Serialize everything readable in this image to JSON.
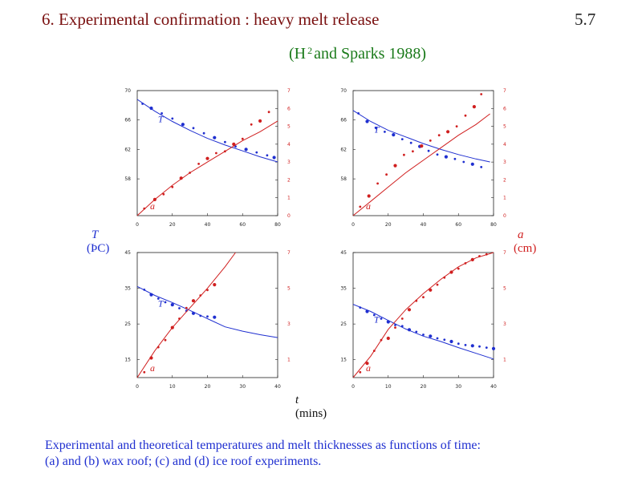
{
  "slide": {
    "title": "6. Experimental confirmation : heavy melt release",
    "number": "5.7",
    "citation_pre": "(H",
    "citation_sup": "2",
    "citation_post": "and Sparks  1988)",
    "left_axis_title": "T",
    "left_axis_unit": "(ÞC)",
    "right_axis_title": "a",
    "right_axis_unit": "(cm)",
    "x_axis_title": "t",
    "x_axis_unit": "(mins)",
    "caption_line1": "Experimental and theoretical temperatures and melt thicknesses as functions of time:",
    "caption_line2": "(a) and (b) wax roof; (c) and (d) ice roof experiments."
  },
  "colors": {
    "temperature": "#1f2fd0",
    "thickness": "#d01f1f",
    "title": "#7a1010",
    "citation": "#1a7a1a"
  },
  "chart_data": [
    {
      "type": "scatter",
      "panel": "a",
      "xlim": [
        0,
        80
      ],
      "xticks": [
        "0",
        "20",
        "40",
        "60",
        "80"
      ],
      "ylim_left": [
        53,
        70
      ],
      "yticks_left": [
        "58",
        "62",
        "66",
        "70"
      ],
      "ylim_right": [
        0,
        7
      ],
      "yticks_right": [
        "0",
        "1",
        "2",
        "3",
        "4",
        "5",
        "6",
        "7"
      ],
      "series": [
        {
          "name": "T",
          "axis": "left",
          "role": "theory",
          "x": [
            0,
            10,
            20,
            30,
            40,
            50,
            60,
            70,
            80
          ],
          "y": [
            68.8,
            67.2,
            65.8,
            64.6,
            63.5,
            62.6,
            61.8,
            61.0,
            60.3
          ]
        },
        {
          "name": "T",
          "axis": "left",
          "role": "data",
          "x": [
            3,
            8,
            14,
            20,
            26,
            32,
            38,
            44,
            50,
            56,
            62,
            68,
            74,
            78
          ],
          "y": [
            68.2,
            67.6,
            66.9,
            66.2,
            65.4,
            64.9,
            64.2,
            63.6,
            63.0,
            62.4,
            62.0,
            61.6,
            61.2,
            60.9
          ]
        },
        {
          "name": "a",
          "axis": "right",
          "role": "theory",
          "x": [
            0,
            10,
            20,
            30,
            40,
            50,
            60,
            70,
            80
          ],
          "y": [
            0,
            0.9,
            1.7,
            2.4,
            3.0,
            3.6,
            4.2,
            4.7,
            5.3
          ]
        },
        {
          "name": "a",
          "axis": "right",
          "role": "data",
          "x": [
            4,
            10,
            15,
            20,
            25,
            30,
            35,
            40,
            45,
            50,
            55,
            60,
            65,
            70,
            75
          ],
          "y": [
            0.4,
            0.9,
            1.2,
            1.6,
            2.1,
            2.4,
            2.9,
            3.2,
            3.5,
            3.6,
            4.0,
            4.3,
            5.1,
            5.3,
            5.8
          ]
        }
      ]
    },
    {
      "type": "scatter",
      "panel": "b",
      "xlim": [
        0,
        80
      ],
      "xticks": [
        "0",
        "20",
        "40",
        "60",
        "80"
      ],
      "ylim_left": [
        53,
        70
      ],
      "yticks_left": [
        "58",
        "62",
        "66",
        "70"
      ],
      "ylim_right": [
        0,
        7
      ],
      "yticks_right": [
        "0",
        "1",
        "2",
        "3",
        "4",
        "5",
        "6",
        "7"
      ],
      "series": [
        {
          "name": "T",
          "axis": "left",
          "role": "theory",
          "x": [
            0,
            10,
            20,
            30,
            40,
            50,
            60,
            70,
            78
          ],
          "y": [
            67.3,
            65.8,
            64.6,
            63.7,
            62.8,
            62.0,
            61.3,
            60.7,
            60.3
          ]
        },
        {
          "name": "T",
          "axis": "left",
          "role": "data",
          "x": [
            3,
            8,
            13,
            18,
            23,
            28,
            33,
            38,
            43,
            48,
            53,
            58,
            63,
            68,
            73
          ],
          "y": [
            66.9,
            65.8,
            64.9,
            64.4,
            64.0,
            63.4,
            62.9,
            62.4,
            61.8,
            61.3,
            61.0,
            60.7,
            60.3,
            60.0,
            59.6
          ]
        },
        {
          "name": "a",
          "axis": "right",
          "role": "theory",
          "x": [
            0,
            10,
            20,
            30,
            40,
            50,
            60,
            70,
            78
          ],
          "y": [
            0,
            0.8,
            1.6,
            2.4,
            3.1,
            3.8,
            4.5,
            5.1,
            5.7
          ]
        },
        {
          "name": "a",
          "axis": "right",
          "role": "data",
          "x": [
            4,
            9,
            14,
            19,
            24,
            29,
            34,
            39,
            44,
            49,
            54,
            59,
            64,
            69,
            73
          ],
          "y": [
            0.5,
            1.1,
            1.8,
            2.3,
            2.8,
            3.4,
            3.6,
            3.9,
            4.2,
            4.5,
            4.7,
            5.0,
            5.6,
            6.1,
            6.8
          ]
        }
      ]
    },
    {
      "type": "scatter",
      "panel": "c",
      "xlim": [
        0,
        40
      ],
      "xticks": [
        "0",
        "10",
        "20",
        "30",
        "40"
      ],
      "ylim_left": [
        10,
        45
      ],
      "yticks_left": [
        "15",
        "25",
        "35",
        "45"
      ],
      "ylim_right": [
        0,
        7
      ],
      "yticks_right": [
        "1",
        "3",
        "5",
        "7"
      ],
      "series": [
        {
          "name": "T",
          "axis": "left",
          "role": "theory",
          "x": [
            0,
            5,
            10,
            15,
            20,
            25,
            30,
            35,
            40
          ],
          "y": [
            35.5,
            33.0,
            31.0,
            28.8,
            26.5,
            24.2,
            23.0,
            22.0,
            21.2
          ]
        },
        {
          "name": "T",
          "axis": "left",
          "role": "data",
          "x": [
            2,
            4,
            6,
            8,
            10,
            12,
            14,
            16,
            18,
            20,
            22
          ],
          "y": [
            34.6,
            33.2,
            32.1,
            31.1,
            30.4,
            29.4,
            28.7,
            28.0,
            27.3,
            27.1,
            26.9
          ]
        },
        {
          "name": "a",
          "axis": "right",
          "role": "theory",
          "x": [
            0,
            5,
            10,
            15,
            20,
            25,
            28
          ],
          "y": [
            0,
            1.5,
            2.8,
            3.9,
            5.0,
            6.2,
            7.0
          ]
        },
        {
          "name": "a",
          "axis": "right",
          "role": "data",
          "x": [
            2,
            4,
            6,
            8,
            10,
            12,
            14,
            16,
            18,
            20,
            22
          ],
          "y": [
            0.3,
            1.1,
            1.7,
            2.1,
            2.8,
            3.3,
            3.9,
            4.3,
            4.6,
            4.9,
            5.2
          ]
        }
      ]
    },
    {
      "type": "scatter",
      "panel": "d",
      "xlim": [
        0,
        40
      ],
      "xticks": [
        "0",
        "10",
        "20",
        "30",
        "40"
      ],
      "ylim_left": [
        10,
        45
      ],
      "yticks_left": [
        "15",
        "25",
        "35",
        "45"
      ],
      "ylim_right": [
        0,
        7
      ],
      "yticks_right": [
        "1",
        "3",
        "5",
        "7"
      ],
      "series": [
        {
          "name": "T",
          "axis": "left",
          "role": "theory",
          "x": [
            0,
            5,
            10,
            15,
            20,
            25,
            30,
            35,
            40
          ],
          "y": [
            30.5,
            28.5,
            26.0,
            23.6,
            21.6,
            20.1,
            18.4,
            16.8,
            15.2
          ]
        },
        {
          "name": "T",
          "axis": "left",
          "role": "data",
          "x": [
            2,
            4,
            6,
            8,
            10,
            12,
            14,
            16,
            18,
            20,
            22,
            24,
            26,
            28,
            30,
            32,
            34,
            36,
            38,
            40
          ],
          "y": [
            29.6,
            28.5,
            27.5,
            26.5,
            25.6,
            24.7,
            24.4,
            23.4,
            22.8,
            22.0,
            21.6,
            21.0,
            20.6,
            20.1,
            19.5,
            19.1,
            18.9,
            18.7,
            18.4,
            18.1
          ]
        },
        {
          "name": "a",
          "axis": "right",
          "role": "theory",
          "x": [
            0,
            5,
            10,
            15,
            20,
            25,
            30,
            35,
            40
          ],
          "y": [
            0,
            1.2,
            2.7,
            3.8,
            4.7,
            5.5,
            6.2,
            6.7,
            7.0
          ]
        },
        {
          "name": "a",
          "axis": "right",
          "role": "data",
          "x": [
            2,
            4,
            6,
            8,
            10,
            12,
            14,
            16,
            18,
            20,
            22,
            24,
            26,
            28,
            30,
            32,
            34,
            36,
            38
          ],
          "y": [
            0.3,
            0.8,
            1.5,
            2.1,
            2.2,
            2.8,
            3.3,
            3.8,
            4.3,
            4.5,
            4.9,
            5.2,
            5.6,
            5.9,
            6.1,
            6.4,
            6.6,
            6.8,
            6.9
          ]
        }
      ]
    }
  ]
}
